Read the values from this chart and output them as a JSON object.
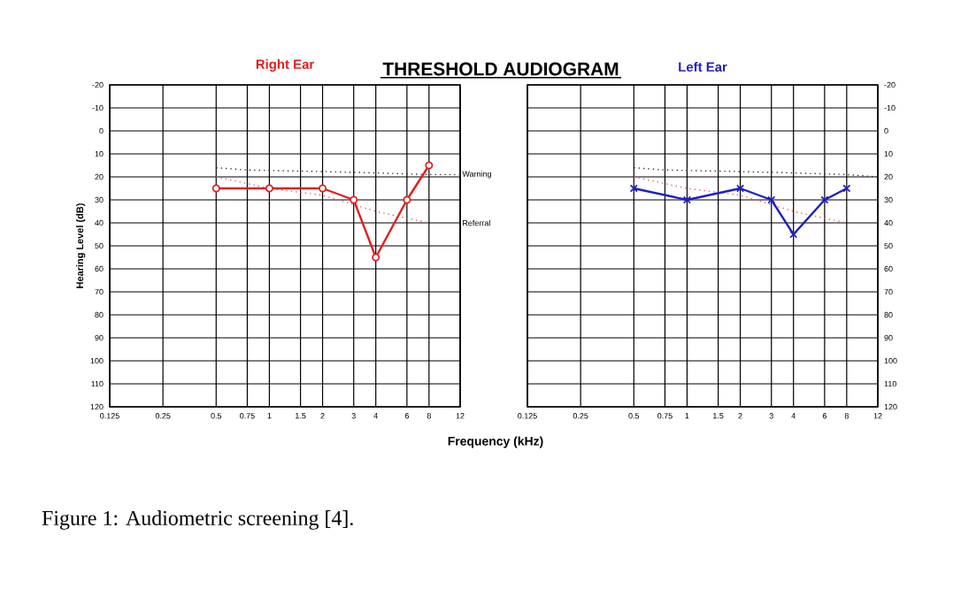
{
  "chart_data": [
    {
      "type": "line",
      "title": "Right Ear",
      "xlabel": "Frequency (kHz)",
      "ylabel": "Hearing Level (dB)",
      "annotations": [
        "THRESHOLD AUDIOGRAM",
        "Figure 1: Audiometric screening [4]."
      ],
      "log": "x",
      "grid": true,
      "xlim": [
        0.125,
        12
      ],
      "ylim": [
        120,
        -20
      ],
      "xticks": [
        0.125,
        0.25,
        0.5,
        0.75,
        1,
        1.5,
        2,
        3,
        4,
        6,
        8,
        12
      ],
      "yticks": [
        -20,
        -10,
        0,
        10,
        20,
        30,
        40,
        50,
        60,
        70,
        80,
        90,
        100,
        110,
        120
      ],
      "series": [
        {
          "name": "Warning",
          "color": "#333333",
          "marker": "none",
          "line_style": "dotted",
          "x": [
            0.5,
            0.75,
            3,
            8,
            12
          ],
          "values": [
            16,
            17,
            18,
            19,
            19
          ]
        },
        {
          "name": "Referral",
          "color": "#e06060",
          "marker": "none",
          "line_style": "dotted",
          "x": [
            0.5,
            1,
            2,
            3,
            4,
            6,
            8
          ],
          "values": [
            20,
            25,
            28,
            32,
            35,
            38,
            40
          ]
        },
        {
          "color": "#e02020",
          "marker": "circle",
          "line_style": "solid",
          "x": [
            0.5,
            1,
            2,
            3,
            4,
            6,
            8
          ],
          "values": [
            25,
            25,
            25,
            30,
            55,
            30,
            15
          ]
        }
      ]
    },
    {
      "type": "line",
      "title": "Left Ear",
      "log": "x",
      "grid": true,
      "xlim": [
        0.125,
        12
      ],
      "ylim": [
        120,
        -20
      ],
      "xticks": [
        0.125,
        0.25,
        0.5,
        0.75,
        1,
        1.5,
        2,
        3,
        4,
        6,
        8,
        12
      ],
      "yticks": [
        -20,
        -10,
        0,
        10,
        20,
        30,
        40,
        50,
        60,
        70,
        80,
        90,
        100,
        110,
        120
      ],
      "series": [
        {
          "color": "#333333",
          "marker": "none",
          "line_style": "dotted",
          "x": [
            0.5,
            0.75,
            3,
            8,
            12
          ],
          "values": [
            16,
            17,
            18,
            19,
            20
          ]
        },
        {
          "color": "#e06060",
          "marker": "none",
          "line_style": "dotted",
          "x": [
            0.5,
            1,
            2,
            3,
            4,
            6,
            8
          ],
          "values": [
            20,
            25,
            28,
            32,
            35,
            38,
            40
          ]
        },
        {
          "color": "#2020c0",
          "marker": "cross",
          "line_style": "solid",
          "x": [
            0.5,
            1,
            2,
            3,
            4,
            6,
            8
          ],
          "values": [
            25,
            30,
            25,
            30,
            45,
            30,
            25
          ]
        }
      ]
    }
  ]
}
